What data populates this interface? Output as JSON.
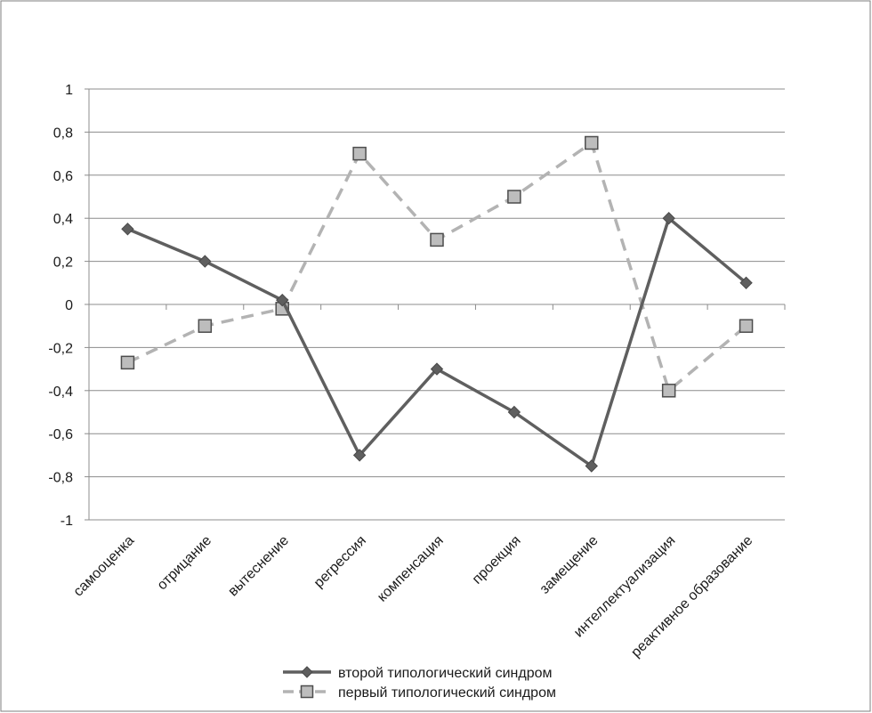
{
  "chart_data": {
    "type": "line",
    "title": "",
    "xlabel": "",
    "ylabel": "",
    "ylim": [
      -1,
      1
    ],
    "y_ticks": [
      1,
      0.8,
      0.6,
      0.4,
      0.2,
      0,
      -0.2,
      -0.4,
      -0.6,
      -0.8,
      -1
    ],
    "y_tick_labels": [
      "1",
      "0,8",
      "0,6",
      "0,4",
      "0,2",
      "0",
      "-0,2",
      "-0,4",
      "-0,6",
      "-0,8",
      "-1"
    ],
    "grid": true,
    "legend_position": "bottom",
    "categories": [
      "самооценка",
      "отрицание",
      "вытеснение",
      "регрессия",
      "компенсация",
      "проекция",
      "замещение",
      "интеллектуализация",
      "реактивное образование"
    ],
    "series": [
      {
        "name": "второй типологический синдром",
        "values": [
          0.35,
          0.2,
          0.02,
          -0.7,
          -0.3,
          -0.5,
          -0.75,
          0.4,
          0.1
        ],
        "color": "#5f5f5f",
        "line_style": "solid",
        "marker": "diamond"
      },
      {
        "name": "первый типологический синдром",
        "values": [
          -0.27,
          -0.1,
          -0.02,
          0.7,
          0.3,
          0.5,
          0.75,
          -0.4,
          -0.1
        ],
        "color": "#b3b3b3",
        "line_style": "dashed",
        "marker": "square"
      }
    ]
  }
}
